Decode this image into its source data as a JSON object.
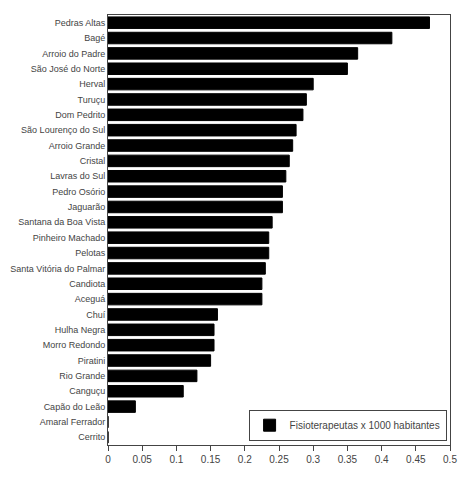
{
  "chart_data": {
    "type": "bar",
    "orientation": "horizontal",
    "categories": [
      "Cerrito",
      "Amaral Ferrador",
      "Capão do Leão",
      "Canguçu",
      "Rio Grande",
      "Piratini",
      "Morro Redondo",
      "Hulha Negra",
      "Chuí",
      "Aceguá",
      "Candiota",
      "Santa Vitória do Palmar",
      "Pelotas",
      "Pinheiro Machado",
      "Santana da Boa Vista",
      "Jaguarão",
      "Pedro Osório",
      "Lavras do Sul",
      "Cristal",
      "Arroio Grande",
      "São Lourenço do Sul",
      "Dom Pedrito",
      "Turuçu",
      "Herval",
      "São José do Norte",
      "Arroio do Padre",
      "Bagé",
      "Pedras Altas"
    ],
    "series": [
      {
        "name": "Fisioterapeutas x 1000 habitantes",
        "color": "#000000",
        "values": [
          0.0,
          0.0,
          0.04,
          0.11,
          0.13,
          0.15,
          0.155,
          0.155,
          0.16,
          0.225,
          0.225,
          0.23,
          0.235,
          0.235,
          0.24,
          0.255,
          0.255,
          0.26,
          0.265,
          0.27,
          0.275,
          0.285,
          0.29,
          0.3,
          0.35,
          0.365,
          0.415,
          0.47
        ]
      }
    ],
    "xlim": [
      0,
      0.5
    ],
    "xticks": [
      0,
      0.05,
      0.1,
      0.15,
      0.2,
      0.25,
      0.3,
      0.35,
      0.4,
      0.45,
      0.5
    ],
    "grid": false,
    "legend": "lower right"
  }
}
